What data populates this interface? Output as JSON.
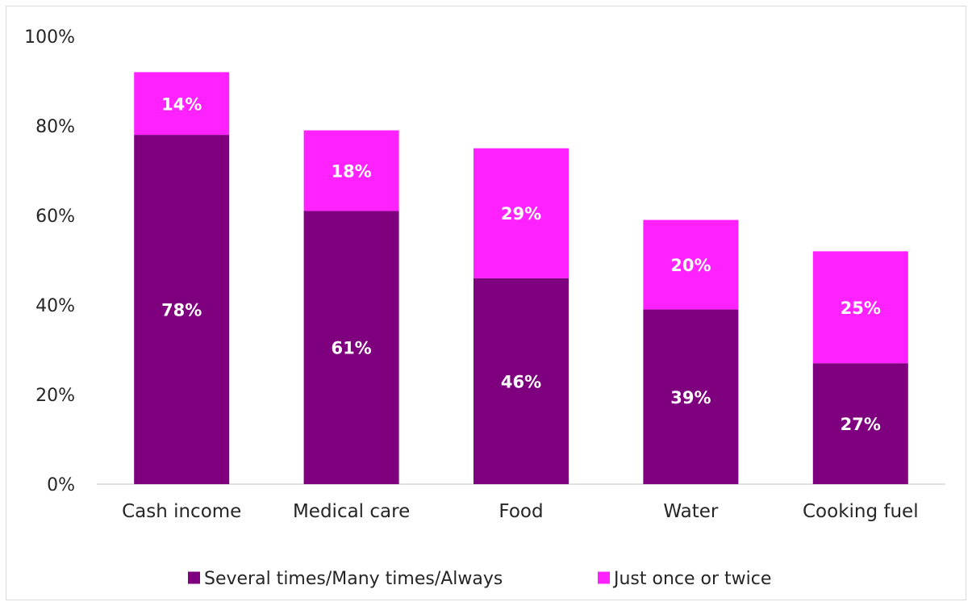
{
  "chart_data": {
    "type": "bar",
    "stacked": true,
    "categories": [
      "Cash income",
      "Medical care",
      "Food",
      "Water",
      "Cooking fuel"
    ],
    "series": [
      {
        "name": "Several times/Many times/Always",
        "color": "#7f007f",
        "values": [
          78,
          61,
          46,
          39,
          27
        ],
        "labels": [
          "78%",
          "61%",
          "46%",
          "39%",
          "27%"
        ]
      },
      {
        "name": "Just once or twice",
        "color": "#ff22ff",
        "values": [
          14,
          18,
          29,
          20,
          25
        ],
        "labels": [
          "14%",
          "18%",
          "29%",
          "20%",
          "25%"
        ]
      }
    ],
    "ylim": [
      0,
      100
    ],
    "y_ticks": [
      0,
      20,
      40,
      60,
      80,
      100
    ],
    "y_tick_labels": [
      "0%",
      "20%",
      "40%",
      "60%",
      "80%",
      "100%"
    ],
    "grid": false,
    "legend_position": "bottom",
    "colors": {
      "axis": "#d9d9d9",
      "text": "#262626",
      "data_label": "#ffffff"
    }
  }
}
